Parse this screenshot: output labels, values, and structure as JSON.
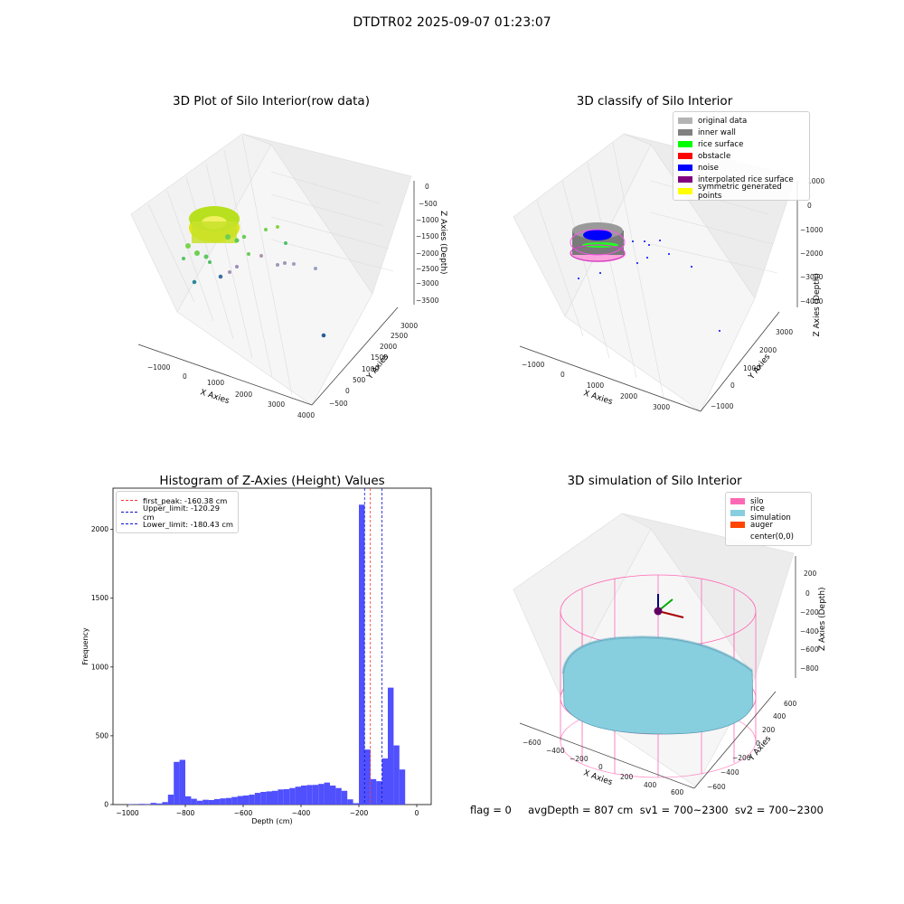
{
  "suptitle": "DTDTR02 2025-09-07 01:23:07",
  "footer": "flag = 0     avgDepth = 807 cm  sv1 = 700~2300  sv2 = 700~2300",
  "colors": {
    "histogram": "#5050ff",
    "first_peak": "#ff3030",
    "limits": "#1010cc",
    "silo": "#ff69b4",
    "rice_simulation": "#87cedf",
    "auger": "#ff4500"
  },
  "panels": {
    "p1": {
      "title": "3D Plot of Silo Interior(row data)",
      "xlabel": "X Axies",
      "ylabel": "Y Axies",
      "zlabel": "Z Axies (Depth)",
      "xticks": [
        "−1000",
        "0",
        "1000",
        "2000",
        "3000",
        "4000"
      ],
      "yticks": [
        "−500",
        "0",
        "500",
        "1000",
        "1500",
        "2000",
        "2500",
        "3000"
      ],
      "zticks": [
        "0",
        "−500",
        "−1000",
        "−1500",
        "−2000",
        "−2500",
        "−3000",
        "−3500"
      ]
    },
    "p2": {
      "title": "3D classify of Silo Interior",
      "xlabel": "X Axies",
      "ylabel": "Y Axies",
      "zlabel": "Z Axies (Depth)",
      "xticks": [
        "−1000",
        "0",
        "1000",
        "2000",
        "3000"
      ],
      "yticks": [
        "−1000",
        "0",
        "1000",
        "2000",
        "3000"
      ],
      "zticks": [
        "1000",
        "0",
        "−1000",
        "−2000",
        "−3000",
        "−4000"
      ],
      "legend": [
        {
          "label": "original data",
          "color": "#b4b4b4"
        },
        {
          "label": "inner wall",
          "color": "#808080"
        },
        {
          "label": "rice surface",
          "color": "#00ff00"
        },
        {
          "label": "obstacle",
          "color": "#ff0000"
        },
        {
          "label": "noise",
          "color": "#0000ff"
        },
        {
          "label": "interpolated rice surface",
          "color": "#800080"
        },
        {
          "label": "symmetric generated points",
          "color": "#ffff00"
        }
      ]
    },
    "p4": {
      "title": "3D simulation of Silo Interior",
      "xlabel": "X Axies",
      "ylabel": "Y Axies",
      "zlabel": "Z Axies (Depth)",
      "xticks": [
        "−600",
        "−400",
        "−200",
        "0",
        "200",
        "400",
        "600"
      ],
      "yticks": [
        "−600",
        "−400",
        "−200",
        "0",
        "200",
        "400",
        "600"
      ],
      "zticks": [
        "200",
        "0",
        "−200",
        "−400",
        "−600",
        "−800"
      ],
      "legend": [
        {
          "label": "silo",
          "color": "#ff69b4"
        },
        {
          "label": "rice simulation",
          "color": "#87cedf"
        },
        {
          "label": "auger",
          "color": "#ff4500"
        },
        {
          "label": "center(0,0)",
          "color": ""
        }
      ]
    }
  },
  "chart_data": [
    {
      "type": "scatter",
      "title": "3D Plot of Silo Interior(row data)",
      "xlabel": "X Axies",
      "ylabel": "Y Axies",
      "zlabel": "Z Axies (Depth)",
      "xlim": [
        -1500,
        4000
      ],
      "ylim": [
        -700,
        3200
      ],
      "zlim": [
        -3700,
        200
      ]
    },
    {
      "type": "scatter",
      "title": "3D classify of Silo Interior",
      "xlabel": "X Axies",
      "ylabel": "Y Axies",
      "zlabel": "Z Axies (Depth)",
      "xlim": [
        -1500,
        3500
      ],
      "ylim": [
        -1200,
        3500
      ],
      "zlim": [
        -4200,
        1200
      ],
      "legend": "top-right"
    },
    {
      "type": "bar",
      "title": "Histogram of Z-Axies (Height) Values",
      "xlabel": "Depth (cm)",
      "ylabel": "Frequency",
      "xlim": [
        -1050,
        50
      ],
      "ylim": [
        0,
        2300
      ],
      "xticks": [
        -1000,
        -800,
        -600,
        -400,
        -200,
        0
      ],
      "yticks": [
        0,
        500,
        1000,
        1500,
        2000
      ],
      "bin_start": -1000,
      "bin_width": 20,
      "values": [
        3,
        2,
        5,
        4,
        12,
        8,
        18,
        72,
        310,
        325,
        60,
        42,
        28,
        35,
        33,
        40,
        45,
        48,
        55,
        62,
        66,
        72,
        85,
        92,
        96,
        100,
        110,
        112,
        120,
        130,
        138,
        142,
        143,
        150,
        160,
        138,
        120,
        100,
        38,
        10,
        2180,
        400,
        185,
        170,
        335,
        850,
        430,
        255
      ],
      "lines": [
        {
          "label": "first_peak: -160.38 cm",
          "x": -160.38,
          "style": "dashed"
        },
        {
          "label": "Upper_limit: -120.29 cm",
          "x": -120.29,
          "style": "dashed"
        },
        {
          "label": "Lower_limit: -180.43 cm",
          "x": -180.43,
          "style": "dashed"
        }
      ],
      "legend": "top-left"
    },
    {
      "type": "scatter",
      "title": "3D simulation of Silo Interior",
      "xlabel": "X Axies",
      "ylabel": "Y Axies",
      "zlabel": "Z Axies (Depth)",
      "xlim": [
        -700,
        700
      ],
      "ylim": [
        -700,
        700
      ],
      "zlim": [
        -950,
        350
      ],
      "legend": "top-right"
    }
  ]
}
